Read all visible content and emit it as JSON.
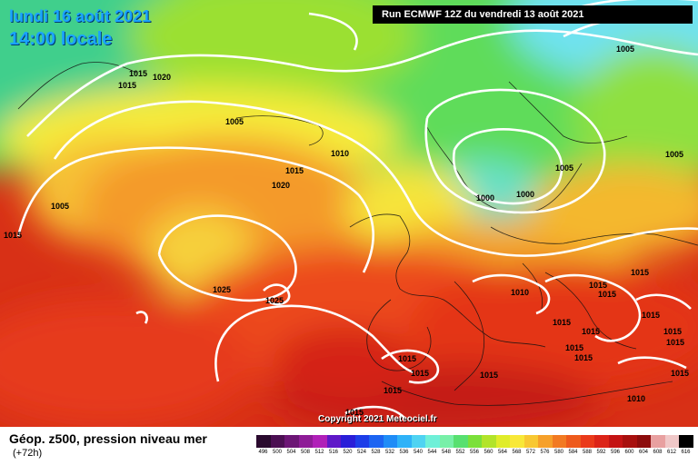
{
  "header": {
    "date_line": "lundi 16 août 2021",
    "time_line": "14:00 locale",
    "run_banner": "Run ECMWF 12Z du vendredi 13 août 2021"
  },
  "footer": {
    "product_title": "Géop. z500, pression niveau mer",
    "lead_time": "(+72h)",
    "copyright": "Copyright 2021 Meteociel.fr"
  },
  "color_scale": [
    {
      "label": "496",
      "color": "#2a0a2e"
    },
    {
      "label": "500",
      "color": "#4b0f52"
    },
    {
      "label": "504",
      "color": "#6c1675"
    },
    {
      "label": "508",
      "color": "#8e1c97"
    },
    {
      "label": "512",
      "color": "#b020b8"
    },
    {
      "label": "516",
      "color": "#5f18c8"
    },
    {
      "label": "520",
      "color": "#2a1ed8"
    },
    {
      "label": "524",
      "color": "#1d3ee8"
    },
    {
      "label": "528",
      "color": "#1c64f2"
    },
    {
      "label": "532",
      "color": "#1f8cf7"
    },
    {
      "label": "536",
      "color": "#2fb2f8"
    },
    {
      "label": "540",
      "color": "#4fd3f2"
    },
    {
      "label": "544",
      "color": "#6ff0d8"
    },
    {
      "label": "548",
      "color": "#78f0a8"
    },
    {
      "label": "552",
      "color": "#58e070"
    },
    {
      "label": "556",
      "color": "#7be03a"
    },
    {
      "label": "560",
      "color": "#b2e42a"
    },
    {
      "label": "564",
      "color": "#e0ec2a"
    },
    {
      "label": "568",
      "color": "#f8e838"
    },
    {
      "label": "572",
      "color": "#f8c832"
    },
    {
      "label": "576",
      "color": "#f6a02a"
    },
    {
      "label": "580",
      "color": "#f27a22"
    },
    {
      "label": "584",
      "color": "#ee5a1c"
    },
    {
      "label": "588",
      "color": "#ea3a1a"
    },
    {
      "label": "592",
      "color": "#dc2418"
    },
    {
      "label": "596",
      "color": "#c41414"
    },
    {
      "label": "600",
      "color": "#a8100e"
    },
    {
      "label": "604",
      "color": "#8c0c0c"
    },
    {
      "label": "608",
      "color": "#e8a0a0"
    },
    {
      "label": "612",
      "color": "#f0c8c8"
    },
    {
      "label": "616",
      "color": "#000000"
    }
  ],
  "isobar_labels": [
    {
      "text": "1015"
    },
    {
      "text": "1020"
    },
    {
      "text": "1015"
    },
    {
      "text": "1005"
    },
    {
      "text": "1010"
    },
    {
      "text": "1015"
    },
    {
      "text": "1020"
    },
    {
      "text": "1005"
    },
    {
      "text": "1015"
    },
    {
      "text": "1025"
    },
    {
      "text": "1025"
    },
    {
      "text": "1005"
    },
    {
      "text": "1005"
    },
    {
      "text": "1005"
    },
    {
      "text": "1000"
    },
    {
      "text": "1000"
    },
    {
      "text": "1010"
    },
    {
      "text": "1015"
    },
    {
      "text": "1015"
    },
    {
      "text": "1015"
    },
    {
      "text": "1015"
    },
    {
      "text": "1015"
    },
    {
      "text": "1015"
    },
    {
      "text": "1015"
    },
    {
      "text": "1015"
    },
    {
      "text": "1015"
    },
    {
      "text": "1015"
    },
    {
      "text": "1015"
    },
    {
      "text": "1015"
    },
    {
      "text": "1015"
    },
    {
      "text": "1015"
    },
    {
      "text": "1015"
    },
    {
      "text": "1015"
    },
    {
      "text": "1010"
    }
  ]
}
